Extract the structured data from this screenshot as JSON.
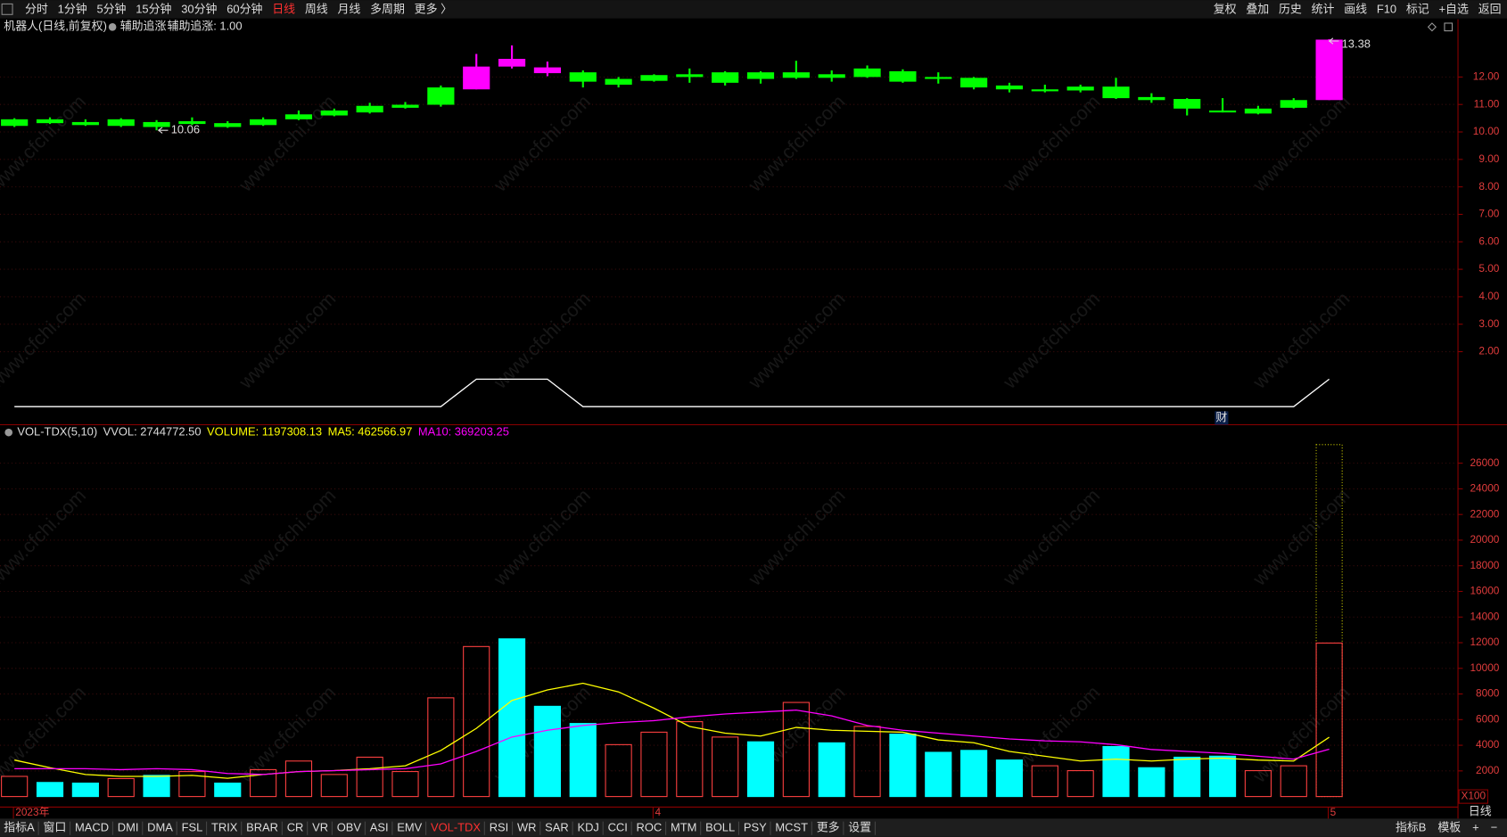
{
  "toolbar": {
    "periods": [
      "分时",
      "1分钟",
      "5分钟",
      "15分钟",
      "30分钟",
      "60分钟",
      "日线",
      "周线",
      "月线",
      "多周期",
      "更多 〉"
    ],
    "active_period_index": 6,
    "tools": [
      "复权",
      "叠加",
      "历史",
      "统计",
      "画线",
      "F10",
      "标记",
      "+自选",
      "返回"
    ]
  },
  "chart_data": [
    {
      "type": "candlestick",
      "title": "机器人(日线,前复权)",
      "open": [
        10.46,
        10.46,
        10.36,
        10.46,
        10.36,
        10.39,
        10.32,
        10.46,
        10.64,
        10.78,
        10.95,
        10.99,
        11.62,
        11.55,
        12.38,
        12.14,
        12.17,
        11.93,
        12.07,
        12.1,
        12.17,
        12.17,
        12.17,
        12.1,
        12.31,
        12.21,
        12.0,
        11.97,
        11.69,
        11.55,
        11.65,
        11.65,
        11.27,
        11.2,
        10.78,
        10.85,
        11.16,
        11.16
      ],
      "high": [
        10.5,
        10.53,
        10.46,
        10.5,
        10.43,
        10.53,
        10.39,
        10.53,
        10.78,
        10.85,
        11.06,
        11.09,
        11.69,
        12.84,
        13.15,
        12.56,
        12.24,
        12.0,
        12.1,
        12.31,
        12.21,
        12.21,
        12.59,
        12.24,
        12.42,
        12.28,
        12.17,
        12.0,
        11.79,
        11.72,
        11.72,
        11.97,
        11.41,
        11.23,
        11.23,
        10.95,
        11.23,
        13.38
      ],
      "low": [
        10.18,
        10.29,
        10.22,
        10.18,
        10.06,
        10.25,
        10.15,
        10.22,
        10.43,
        10.57,
        10.67,
        10.85,
        10.92,
        11.55,
        12.31,
        12.03,
        11.62,
        11.62,
        11.83,
        11.79,
        11.69,
        11.76,
        11.93,
        11.83,
        11.97,
        11.79,
        11.76,
        11.55,
        11.44,
        11.44,
        11.44,
        11.2,
        11.06,
        10.6,
        10.71,
        10.64,
        10.85,
        11.16
      ],
      "close": [
        10.22,
        10.32,
        10.25,
        10.22,
        10.18,
        10.29,
        10.18,
        10.25,
        10.46,
        10.6,
        10.71,
        10.88,
        10.99,
        12.38,
        12.66,
        12.35,
        11.83,
        11.72,
        11.86,
        12.0,
        11.79,
        11.93,
        11.97,
        11.97,
        12.0,
        11.83,
        11.93,
        11.62,
        11.55,
        11.48,
        11.51,
        11.23,
        11.16,
        10.85,
        10.74,
        10.67,
        10.88,
        13.36
      ],
      "up_color": "#ff00ff",
      "down_color": "#00ff00",
      "low_labels": [
        null,
        null,
        null,
        null,
        "10.06",
        null,
        null,
        null,
        null,
        null,
        null,
        null,
        null,
        null,
        null,
        null,
        null,
        null,
        null,
        null,
        null,
        null,
        null,
        null,
        null,
        null,
        null,
        null,
        null,
        null,
        null,
        null,
        null,
        null,
        null,
        null,
        null,
        null
      ],
      "high_labels": [
        null,
        null,
        null,
        null,
        null,
        null,
        null,
        null,
        null,
        null,
        null,
        null,
        null,
        null,
        null,
        null,
        null,
        null,
        null,
        null,
        null,
        null,
        null,
        null,
        null,
        null,
        null,
        null,
        null,
        null,
        null,
        null,
        null,
        null,
        null,
        null,
        null,
        "13.38"
      ],
      "indicator": {
        "title": "辅助追涨",
        "name": "辅助追涨: 1.00",
        "color": "#ffffff",
        "values": [
          0,
          0,
          0,
          0,
          0,
          0,
          0,
          0,
          0,
          0,
          0,
          0,
          0,
          1,
          1,
          1,
          0,
          0,
          0,
          0,
          0,
          0,
          0,
          0,
          0,
          0,
          0,
          0,
          0,
          0,
          0,
          0,
          0,
          0,
          0,
          0,
          0,
          1
        ]
      },
      "ylim": [
        -0.66,
        14.1
      ],
      "yticks": [
        {
          "value": 2,
          "label": "2.00"
        },
        {
          "value": 3,
          "label": "3.00"
        },
        {
          "value": 4,
          "label": "4.00"
        },
        {
          "value": 5,
          "label": "5.00"
        },
        {
          "value": 6,
          "label": "6.00"
        },
        {
          "value": 7,
          "label": "7.00"
        },
        {
          "value": 8,
          "label": "8.00"
        },
        {
          "value": 9,
          "label": "9.00"
        },
        {
          "value": 10,
          "label": "10.00"
        },
        {
          "value": 11,
          "label": "11.00"
        },
        {
          "value": 12,
          "label": "12.00"
        }
      ],
      "grid": true
    },
    {
      "type": "bar",
      "title": "VOL-TDX(5,10)",
      "categories": [
        "2023年",
        null,
        null,
        null,
        null,
        null,
        null,
        null,
        null,
        null,
        null,
        null,
        null,
        null,
        null,
        null,
        null,
        null,
        "4",
        null,
        null,
        null,
        null,
        null,
        null,
        null,
        null,
        null,
        null,
        null,
        null,
        null,
        null,
        null,
        null,
        null,
        null,
        "5"
      ],
      "series": [
        {
          "name": "VVOL: 2744772.50",
          "type": "projection",
          "color": "#dddddd",
          "mark_color": "#c8c800",
          "values": [
            null,
            null,
            null,
            null,
            null,
            null,
            null,
            null,
            null,
            null,
            null,
            null,
            null,
            null,
            null,
            null,
            null,
            null,
            null,
            null,
            null,
            null,
            null,
            null,
            null,
            null,
            null,
            null,
            null,
            null,
            null,
            null,
            null,
            null,
            null,
            null,
            null,
            27447.725
          ]
        },
        {
          "name": "VOLUME: 1197308.13",
          "type": "bar",
          "color": "#ffff00",
          "values": [
            1573,
            1100,
            1050,
            1400,
            1650,
            1950,
            1050,
            2100,
            2770,
            1720,
            3070,
            1950,
            7700,
            11700,
            12300,
            7040,
            5700,
            4050,
            5020,
            5840,
            4640,
            4270,
            7340,
            4190,
            5470,
            4870,
            3450,
            3600,
            2850,
            2400,
            2020,
            3900,
            2250,
            3070,
            3150,
            2020,
            2400,
            11973.0813
          ],
          "colors": [
            "#ff4040",
            "#00ffff",
            "#00ffff",
            "#ff4040",
            "#00ffff",
            "#ff4040",
            "#00ffff",
            "#ff4040",
            "#ff4040",
            "#ff4040",
            "#ff4040",
            "#ff4040",
            "#ff4040",
            "#ff4040",
            "#00ffff",
            "#00ffff",
            "#00ffff",
            "#ff4040",
            "#ff4040",
            "#ff4040",
            "#ff4040",
            "#00ffff",
            "#ff4040",
            "#00ffff",
            "#ff4040",
            "#00ffff",
            "#00ffff",
            "#00ffff",
            "#00ffff",
            "#ff4040",
            "#ff4040",
            "#00ffff",
            "#00ffff",
            "#00ffff",
            "#00ffff",
            "#ff4040",
            "#ff4040",
            "#ff4040"
          ],
          "hollow_color": "#ff4040"
        },
        {
          "name": "MA5: 462566.97",
          "type": "line",
          "color": "#ffff00",
          "values": [
            2846,
            2247,
            1723,
            1573,
            1573,
            1648,
            1423,
            1723,
            1947,
            2022,
            2172,
            2397,
            3595,
            5318,
            7490,
            8314,
            8838,
            8164,
            6891,
            5468,
            4943,
            4719,
            5393,
            5168,
            5093,
            5018,
            4419,
            4194,
            3520,
            3146,
            2771,
            2921,
            2771,
            2921,
            2996,
            2846,
            2771,
            4625.6697
          ]
        },
        {
          "name": "MA10: 369203.25",
          "type": "line",
          "color": "#ff00ff",
          "values": [
            2172,
            2172,
            2172,
            2097,
            2172,
            2097,
            1798,
            1723,
            1947,
            2022,
            2097,
            2172,
            2547,
            3520,
            4644,
            5168,
            5543,
            5767,
            5917,
            6217,
            6441,
            6591,
            6741,
            6292,
            5543,
            5168,
            4943,
            4719,
            4494,
            4344,
            4269,
            4045,
            3670,
            3520,
            3371,
            3146,
            2921,
            3692.0325
          ]
        }
      ],
      "unit": "X100",
      "ylim": [
        0,
        27800
      ],
      "yticks": [
        2000,
        4000,
        6000,
        8000,
        10000,
        12000,
        14000,
        16000,
        18000,
        20000,
        22000,
        24000,
        26000
      ],
      "grid": true
    }
  ],
  "bottom_tabs": {
    "indicators": [
      "指标A",
      "窗口",
      "MACD",
      "DMI",
      "DMA",
      "FSL",
      "TRIX",
      "BRAR",
      "CR",
      "VR",
      "OBV",
      "ASI",
      "EMV",
      "VOL-TDX",
      "RSI",
      "WR",
      "SAR",
      "KDJ",
      "CCI",
      "ROC",
      "MTM",
      "BOLL",
      "PSY",
      "MCST",
      "更多",
      "设置"
    ],
    "active_index": 13,
    "right": [
      "指标B",
      "模板",
      "+",
      "−"
    ]
  },
  "period_label": "日线",
  "finance_marker": "财",
  "watermark": "www.cfchi.com"
}
